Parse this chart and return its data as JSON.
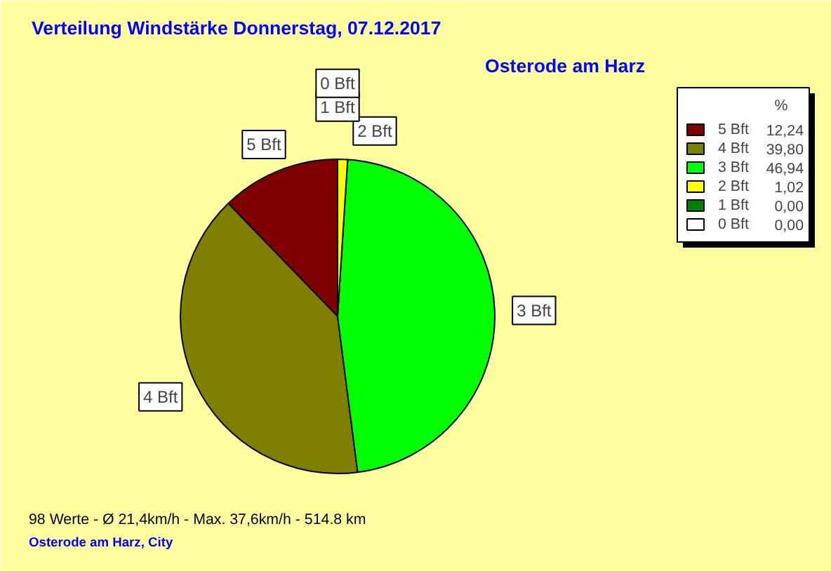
{
  "chart_data": {
    "type": "pie",
    "title": "Verteilung Windstärke  Donnerstag, 07.12.2017",
    "subtitle": "Osterode am Harz",
    "legend_title": "%",
    "legend": "top right",
    "categories": [
      "5 Bft",
      "4 Bft",
      "3 Bft",
      "2 Bft",
      "1 Bft",
      "0 Bft"
    ],
    "values": [
      12.24,
      39.8,
      46.94,
      1.02,
      0.0,
      0.0
    ],
    "value_labels": [
      "12,24",
      "39,80",
      "46,94",
      "1,02",
      "0,00",
      "0,00"
    ],
    "colors": [
      "#800000",
      "#808000",
      "#00ff00",
      "#ffff00",
      "#008000",
      "#ffffff"
    ],
    "annotations": [
      "98 Werte   -   Ø 21,4km/h  -  Max. 37,6km/h   -   514.8 km",
      "Osterode am Harz, City"
    ]
  }
}
